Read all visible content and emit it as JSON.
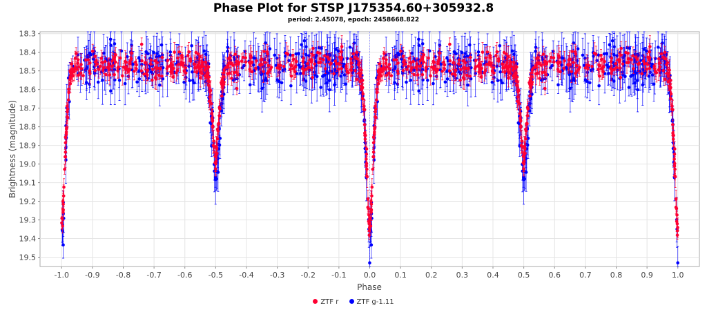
{
  "chart_data": {
    "type": "scatter",
    "title": "Phase Plot for STSP J175354.60+305932.8",
    "subtitle": "period: 2.45078, epoch: 2458668.822",
    "xlabel": "Phase",
    "ylabel": "Brightness (magnitude)",
    "xlim": [
      -1.07,
      1.07
    ],
    "ylim": [
      19.55,
      18.29
    ],
    "y_inverted": true,
    "x_ticks": [
      "-1.0",
      "-0.9",
      "-0.8",
      "-0.7",
      "-0.6",
      "-0.5",
      "-0.4",
      "-0.3",
      "-0.2",
      "-0.1",
      "0.0",
      "0.1",
      "0.2",
      "0.3",
      "0.4",
      "0.5",
      "0.6",
      "0.7",
      "0.8",
      "0.9",
      "1.0"
    ],
    "y_ticks": [
      "18.3",
      "18.4",
      "18.5",
      "18.6",
      "18.7",
      "18.8",
      "18.9",
      "19.0",
      "19.1",
      "19.2",
      "19.3",
      "19.4",
      "19.5"
    ],
    "grid": true,
    "legend_position": "bottom-center",
    "series": [
      {
        "name": "ZTF r",
        "color": "#ff0033",
        "baseline": 18.47,
        "scatter": 0.05,
        "error": 0.04,
        "primary_eclipse_depth": 19.35,
        "secondary_eclipse_depth": 18.97,
        "points_per_cycle": 420
      },
      {
        "name": "ZTF g-1.11",
        "color": "#0000ff",
        "baseline": 18.47,
        "scatter": 0.08,
        "error": 0.09,
        "primary_eclipse_depth": 19.45,
        "secondary_eclipse_depth": 19.1,
        "points_per_cycle": 380
      }
    ]
  }
}
